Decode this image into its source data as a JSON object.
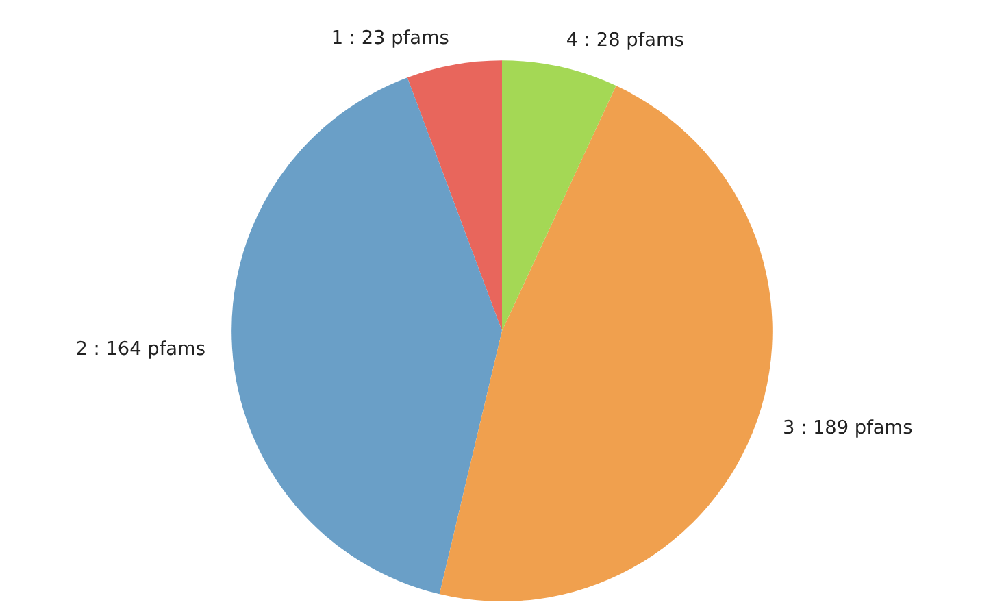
{
  "chart_data": {
    "type": "pie",
    "categories": [
      "1 : 23 pfams",
      "2 : 164 pfams",
      "3 : 189 pfams",
      "4 : 28 pfams"
    ],
    "values": [
      23,
      164,
      189,
      28
    ],
    "colors": [
      "#e8665c",
      "#6a9fc7",
      "#f0a04e",
      "#a4d855"
    ]
  }
}
